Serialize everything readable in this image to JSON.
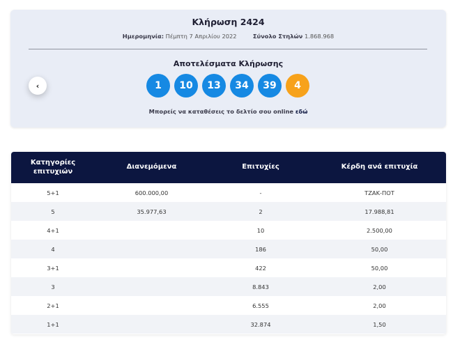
{
  "draw": {
    "title": "Κλήρωση 2424",
    "date_label": "Ημερομηνία:",
    "date_value": "Πέμπτη 7 Απριλίου 2022",
    "columns_label": "Σύνολο Στηλών",
    "columns_value": "1.868.968",
    "results_title": "Αποτελέσματα Κλήρωσης",
    "prev_icon": "chevron-left-icon",
    "prev_glyph": "‹",
    "numbers": [
      "1",
      "10",
      "13",
      "34",
      "39"
    ],
    "joker": "4",
    "online_text": "Μπορείς να καταθέσεις το δελτίο σου online",
    "online_link": "εδώ",
    "colors": {
      "ball_blue": "#1689e3",
      "ball_joker": "#f7a21b",
      "header_navy": "#0c1640",
      "card_bg": "#e9edf6"
    }
  },
  "prize_table": {
    "headers": [
      "Κατηγορίες επιτυχιών",
      "Διανεμόμενα",
      "Επιτυχίες",
      "Κέρδη ανά επιτυχία"
    ],
    "rows": [
      {
        "category": "5+1",
        "distributed": "600.000,00",
        "winners": "-",
        "prize": "ΤΖΑΚ-ΠΟΤ"
      },
      {
        "category": "5",
        "distributed": "35.977,63",
        "winners": "2",
        "prize": "17.988,81"
      },
      {
        "category": "4+1",
        "distributed": "",
        "winners": "10",
        "prize": "2.500,00"
      },
      {
        "category": "4",
        "distributed": "",
        "winners": "186",
        "prize": "50,00"
      },
      {
        "category": "3+1",
        "distributed": "",
        "winners": "422",
        "prize": "50,00"
      },
      {
        "category": "3",
        "distributed": "",
        "winners": "8.843",
        "prize": "2,00"
      },
      {
        "category": "2+1",
        "distributed": "",
        "winners": "6.555",
        "prize": "2,00"
      },
      {
        "category": "1+1",
        "distributed": "",
        "winners": "32.874",
        "prize": "1,50"
      }
    ]
  }
}
